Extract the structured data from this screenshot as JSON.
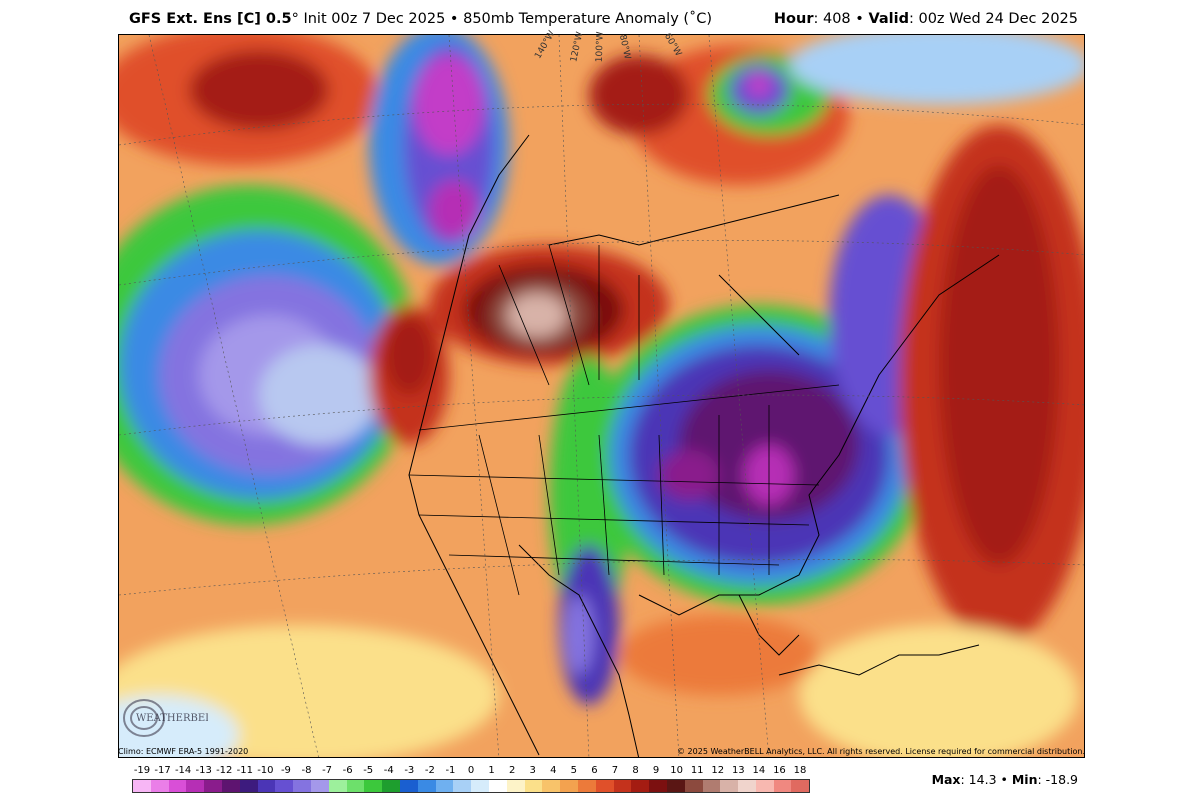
{
  "header": {
    "model": "GFS Ext.  Ens [C] 0.5",
    "degree": "°",
    "init": " Init 00z 7 Dec 2025",
    "bullet": " • ",
    "field": "850mb Temperature Anomaly (˚C)",
    "hour_label": "Hour",
    "hour_value": ": 408 • ",
    "valid_label": "Valid",
    "valid_value": ": 00z Wed 24 Dec 2025"
  },
  "map": {
    "lon_labels": [
      "140°W",
      "120°W",
      "100°W",
      "80°W",
      "60°W"
    ],
    "logo_text": "WEATHERBELL",
    "colors": {
      "warm_orange": "#f2a25e",
      "warm_red": "#e0502a",
      "dark_red": "#8b1a10",
      "brown": "#6b2b22",
      "cold_blue": "#2f6ed8",
      "cold_purple": "#5a3fc2",
      "deep_purple": "#5a1c7e",
      "magenta": "#c33ec8",
      "green": "#38c43a",
      "light_blue": "#a8c8f0"
    }
  },
  "footer": {
    "climo": "Climo: ECMWF ERA-5 1991-2020",
    "copyright": "© 2025 WeatherBELL Analytics, LLC. All rights reserved. License required for commercial distribution."
  },
  "colorbar": {
    "labels": [
      "-19",
      "-17",
      "-14",
      "-13",
      "-12",
      "-11",
      "-10",
      "-9",
      "-8",
      "-7",
      "-6",
      "-5",
      "-4",
      "-3",
      "-2",
      "-1",
      "0",
      "1",
      "2",
      "3",
      "4",
      "5",
      "6",
      "7",
      "8",
      "9",
      "10",
      "11",
      "12",
      "13",
      "14",
      "16",
      "18"
    ],
    "colors": [
      "#f7b6f5",
      "#ea7ee8",
      "#d94fd7",
      "#b62fb5",
      "#8a1c8c",
      "#5e1470",
      "#3d1b7e",
      "#4b35b6",
      "#6650d2",
      "#8473e0",
      "#a498ea",
      "#9df09c",
      "#6de06b",
      "#3cc83c",
      "#1e9e2e",
      "#1a5fd0",
      "#3a8ae4",
      "#6fb0f0",
      "#a8d0f6",
      "#d6ecfb",
      "#ffffff",
      "#fdf3c8",
      "#fbe08a",
      "#f8c36a",
      "#f3a24f",
      "#ec7a3a",
      "#e0502a",
      "#c4321c",
      "#a41c12",
      "#7c1010",
      "#5a1614",
      "#8c4a3e",
      "#b07c70",
      "#d8b2a8",
      "#f0d4cc",
      "#f8b8b0",
      "#f08880",
      "#e06a60"
    ]
  },
  "stats": {
    "max_label": "Max",
    "max_value": ": 14.3 • ",
    "min_label": "Min",
    "min_value": ": -18.9"
  }
}
